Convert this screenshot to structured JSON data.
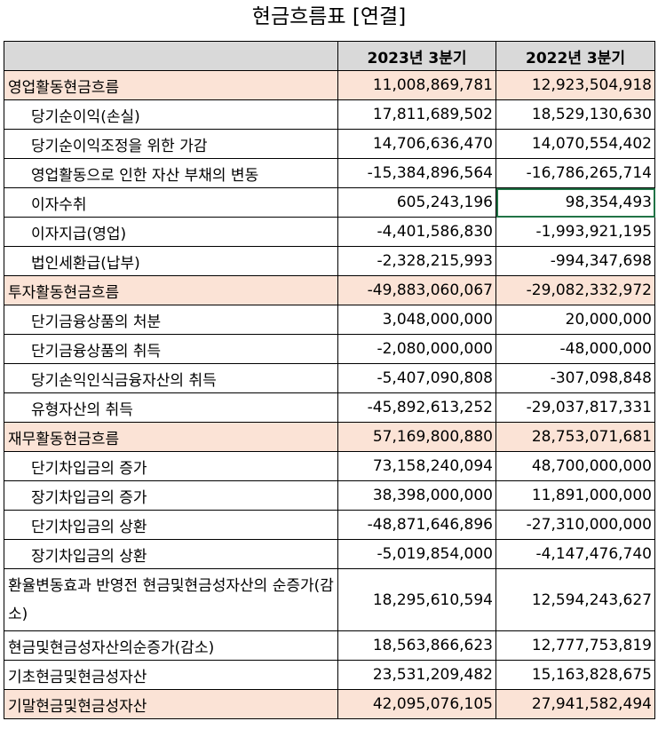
{
  "title": "현금흐름표 [연결]",
  "headers": [
    "",
    "2023년 3분기",
    "2022년 3분기"
  ],
  "rows": [
    {
      "label": "영업활동현금흐름",
      "v2023": "11,008,869,781",
      "v2022": "12,923,504,918",
      "type": "section"
    },
    {
      "label": "당기순이익(손실)",
      "v2023": "17,811,689,502",
      "v2022": "18,529,130,630",
      "type": "sub"
    },
    {
      "label": "당기순이익조정을 위한 가감",
      "v2023": "14,706,636,470",
      "v2022": "14,070,554,402",
      "type": "sub"
    },
    {
      "label": "영업활동으로 인한 자산 부채의 변동",
      "v2023": "-15,384,896,564",
      "v2022": "-16,786,265,714",
      "type": "sub"
    },
    {
      "label": "이자수취",
      "v2023": "605,243,196",
      "v2022": "98,354,493",
      "type": "sub",
      "selected": "v2022"
    },
    {
      "label": "이자지급(영업)",
      "v2023": "-4,401,586,830",
      "v2022": "-1,993,921,195",
      "type": "sub"
    },
    {
      "label": "법인세환급(납부)",
      "v2023": "-2,328,215,993",
      "v2022": "-994,347,698",
      "type": "sub"
    },
    {
      "label": "투자활동현금흐름",
      "v2023": "-49,883,060,067",
      "v2022": "-29,082,332,972",
      "type": "section"
    },
    {
      "label": "단기금융상품의 처분",
      "v2023": "3,048,000,000",
      "v2022": "20,000,000",
      "type": "sub"
    },
    {
      "label": "단기금융상품의 취득",
      "v2023": "-2,080,000,000",
      "v2022": "-48,000,000",
      "type": "sub"
    },
    {
      "label": "당기손익인식금융자산의 취득",
      "v2023": "-5,407,090,808",
      "v2022": "-307,098,848",
      "type": "sub"
    },
    {
      "label": "유형자산의 취득",
      "v2023": "-45,892,613,252",
      "v2022": "-29,037,817,331",
      "type": "sub"
    },
    {
      "label": "재무활동현금흐름",
      "v2023": "57,169,800,880",
      "v2022": "28,753,071,681",
      "type": "section"
    },
    {
      "label": "단기차입금의 증가",
      "v2023": "73,158,240,094",
      "v2022": "48,700,000,000",
      "type": "sub"
    },
    {
      "label": "장기차입금의 증가",
      "v2023": "38,398,000,000",
      "v2022": "11,891,000,000",
      "type": "sub"
    },
    {
      "label": "단기차입금의 상환",
      "v2023": "-48,871,646,896",
      "v2022": "-27,310,000,000",
      "type": "sub"
    },
    {
      "label": "장기차입금의 상환",
      "v2023": "-5,019,854,000",
      "v2022": "-4,147,476,740",
      "type": "sub"
    },
    {
      "label": "환율변동효과 반영전 현금및현금성자산의 순증가(감소)",
      "v2023": "18,295,610,594",
      "v2022": "12,594,243,627",
      "type": "tall"
    },
    {
      "label": "현금및현금성자산의순증가(감소)",
      "v2023": "18,563,866,623",
      "v2022": "12,777,753,819",
      "type": "plain"
    },
    {
      "label": "기초현금및현금성자산",
      "v2023": "23,531,209,482",
      "v2022": "15,163,828,675",
      "type": "plain"
    },
    {
      "label": "기말현금및현금성자산",
      "v2023": "42,095,076,105",
      "v2022": "27,941,582,494",
      "type": "section"
    }
  ]
}
